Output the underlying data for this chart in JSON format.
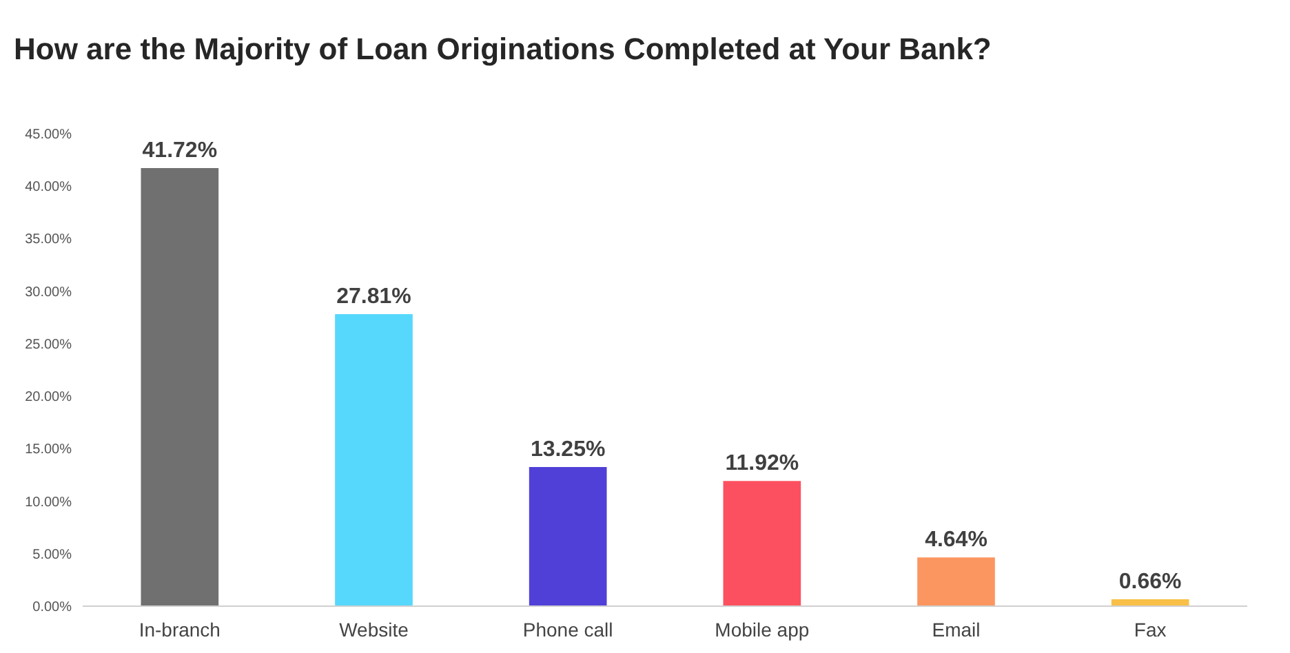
{
  "chart_data": {
    "type": "bar",
    "title": "How are the Majority of Loan Originations Completed at Your Bank?",
    "categories": [
      "In-branch",
      "Website",
      "Phone call",
      "Mobile app",
      "Email",
      "Fax"
    ],
    "values": [
      41.72,
      27.81,
      13.25,
      11.92,
      4.64,
      0.66
    ],
    "colors": [
      "#707070",
      "#56d8fc",
      "#5040d8",
      "#fc5060",
      "#fc9660",
      "#f8c048"
    ],
    "value_labels": [
      "41.72%",
      "27.81%",
      "13.25%",
      "11.92%",
      "4.64%",
      "0.66%"
    ],
    "ylim": [
      0,
      45
    ],
    "yticks": [
      {
        "value": 0,
        "label": "0.00%"
      },
      {
        "value": 5,
        "label": "5.00%"
      },
      {
        "value": 10,
        "label": "10.00%"
      },
      {
        "value": 15,
        "label": "15.00%"
      },
      {
        "value": 20,
        "label": "20.00%"
      },
      {
        "value": 25,
        "label": "25.00%"
      },
      {
        "value": 30,
        "label": "30.00%"
      },
      {
        "value": 35,
        "label": "35.00%"
      },
      {
        "value": 40,
        "label": "40.00%"
      },
      {
        "value": 45,
        "label": "45.00%"
      }
    ],
    "grid": false
  }
}
